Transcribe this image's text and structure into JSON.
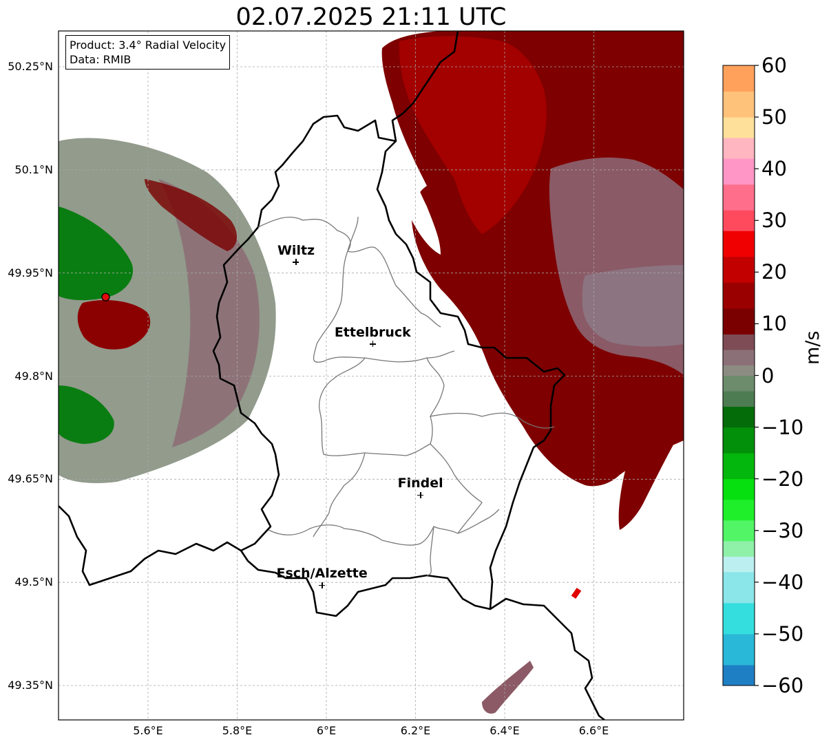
{
  "title": "02.07.2025 21:11 UTC",
  "info": {
    "product_label": "Product: 3.4° Radial Velocity",
    "data_label": "Data: RMIB"
  },
  "map": {
    "lon_range": [
      5.4,
      6.8
    ],
    "lat_range": [
      49.3,
      50.3
    ],
    "lon_ticks": [
      {
        "v": 5.6,
        "label": "5.6°E"
      },
      {
        "v": 5.8,
        "label": "5.8°E"
      },
      {
        "v": 6.0,
        "label": "6°E"
      },
      {
        "v": 6.2,
        "label": "6.2°E"
      },
      {
        "v": 6.4,
        "label": "6.4°E"
      },
      {
        "v": 6.6,
        "label": "6.6°E"
      }
    ],
    "lat_ticks": [
      {
        "v": 50.25,
        "label": "50.25°N"
      },
      {
        "v": 50.1,
        "label": "50.1°N"
      },
      {
        "v": 49.95,
        "label": "49.95°N"
      },
      {
        "v": 49.8,
        "label": "49.8°N"
      },
      {
        "v": 49.65,
        "label": "49.65°N"
      },
      {
        "v": 49.5,
        "label": "49.5°N"
      },
      {
        "v": 49.35,
        "label": "49.35°N"
      }
    ],
    "gridlines": true,
    "radar_site": {
      "lon": 5.505,
      "lat": 49.915,
      "color": "#e30b0b"
    },
    "cities": [
      {
        "name": "Wiltz",
        "lon": 5.932,
        "lat": 49.966
      },
      {
        "name": "Ettelbruck",
        "lon": 6.104,
        "lat": 49.847
      },
      {
        "name": "Findel",
        "lon": 6.211,
        "lat": 49.627
      },
      {
        "name": "Esch/Alzette",
        "lon": 5.99,
        "lat": 49.496
      }
    ]
  },
  "colorbar": {
    "label": "m/s",
    "min": -60,
    "max": 60,
    "ticks": [
      {
        "v": 60,
        "label": "60"
      },
      {
        "v": 50,
        "label": "50"
      },
      {
        "v": 40,
        "label": "40"
      },
      {
        "v": 30,
        "label": "30"
      },
      {
        "v": 20,
        "label": "20"
      },
      {
        "v": 10,
        "label": "10"
      },
      {
        "v": 0,
        "label": "0"
      },
      {
        "v": -10,
        "label": "−10"
      },
      {
        "v": -20,
        "label": "−20"
      },
      {
        "v": -30,
        "label": "−30"
      },
      {
        "v": -40,
        "label": "−40"
      },
      {
        "v": -50,
        "label": "−50"
      },
      {
        "v": -60,
        "label": "−60"
      }
    ],
    "stops": [
      {
        "from": -60,
        "to": -56,
        "color": "#1f7fc4"
      },
      {
        "from": -56,
        "to": -50,
        "color": "#2ab8d8"
      },
      {
        "from": -50,
        "to": -44,
        "color": "#35dede"
      },
      {
        "from": -44,
        "to": -38,
        "color": "#8ae6e8"
      },
      {
        "from": -38,
        "to": -35,
        "color": "#bceff0"
      },
      {
        "from": -35,
        "to": -32,
        "color": "#8ff0a8"
      },
      {
        "from": -32,
        "to": -28,
        "color": "#52f566"
      },
      {
        "from": -28,
        "to": -24,
        "color": "#1fef2a"
      },
      {
        "from": -24,
        "to": -20,
        "color": "#06e00e"
      },
      {
        "from": -20,
        "to": -15,
        "color": "#03b70c"
      },
      {
        "from": -15,
        "to": -10,
        "color": "#028f0a"
      },
      {
        "from": -10,
        "to": -6,
        "color": "#046c09"
      },
      {
        "from": -6,
        "to": -3,
        "color": "#4e7c52"
      },
      {
        "from": -3,
        "to": 0,
        "color": "#6c8c6c"
      },
      {
        "from": 0,
        "to": 2,
        "color": "#8c8c82"
      },
      {
        "from": 2,
        "to": 5,
        "color": "#8c7078"
      },
      {
        "from": 5,
        "to": 8,
        "color": "#7d4c55"
      },
      {
        "from": 8,
        "to": 13,
        "color": "#7a0000"
      },
      {
        "from": 13,
        "to": 18,
        "color": "#9b0000"
      },
      {
        "from": 18,
        "to": 23,
        "color": "#c20000"
      },
      {
        "from": 23,
        "to": 28,
        "color": "#f00000"
      },
      {
        "from": 28,
        "to": 32,
        "color": "#ff4a5e"
      },
      {
        "from": 32,
        "to": 37,
        "color": "#ff6f8c"
      },
      {
        "from": 37,
        "to": 42,
        "color": "#ff96c6"
      },
      {
        "from": 42,
        "to": 46,
        "color": "#ffb6c0"
      },
      {
        "from": 46,
        "to": 50,
        "color": "#ffe09a"
      },
      {
        "from": 50,
        "to": 55,
        "color": "#ffc27a"
      },
      {
        "from": 55,
        "to": 60,
        "color": "#ffa15a"
      }
    ]
  }
}
